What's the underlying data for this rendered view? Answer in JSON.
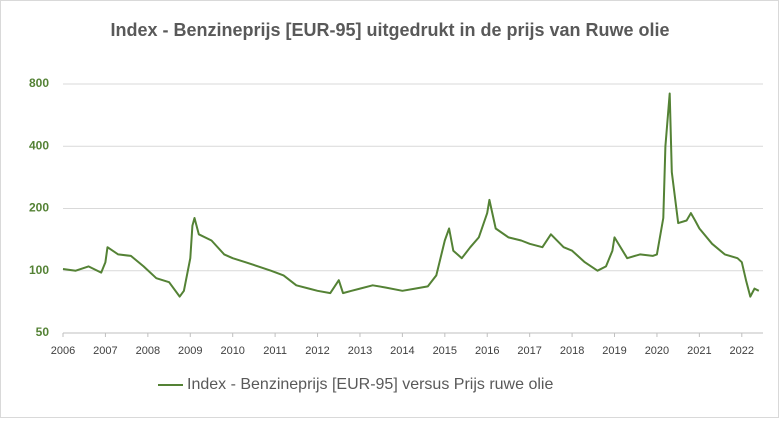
{
  "chart_data": {
    "type": "line",
    "title": "Index - Benzineprijs [EUR-95] uitgedrukt in de prijs van Ruwe olie",
    "x": [
      2006.0,
      2006.3,
      2006.6,
      2006.9,
      2007.0,
      2007.05,
      2007.3,
      2007.6,
      2007.9,
      2008.2,
      2008.5,
      2008.75,
      2008.85,
      2009.0,
      2009.05,
      2009.1,
      2009.2,
      2009.5,
      2009.8,
      2010.0,
      2010.3,
      2010.6,
      2010.9,
      2011.2,
      2011.5,
      2011.8,
      2012.0,
      2012.3,
      2012.5,
      2012.6,
      2012.8,
      2013.0,
      2013.3,
      2013.6,
      2014.0,
      2014.3,
      2014.6,
      2014.8,
      2015.0,
      2015.1,
      2015.2,
      2015.4,
      2015.6,
      2015.8,
      2016.0,
      2016.05,
      2016.2,
      2016.5,
      2016.8,
      2017.0,
      2017.3,
      2017.5,
      2017.8,
      2018.0,
      2018.3,
      2018.6,
      2018.8,
      2018.95,
      2019.0,
      2019.3,
      2019.6,
      2019.9,
      2020.0,
      2020.15,
      2020.2,
      2020.3,
      2020.35,
      2020.5,
      2020.7,
      2020.8,
      2020.9,
      2021.0,
      2021.3,
      2021.6,
      2021.9,
      2022.0,
      2022.1,
      2022.2,
      2022.3,
      2022.4
    ],
    "series": [
      {
        "name": "Index - Benzineprijs [EUR-95] versus Prijs ruwe olie",
        "color": "#548235",
        "values": [
          102,
          100,
          105,
          98,
          110,
          130,
          120,
          118,
          105,
          92,
          88,
          75,
          80,
          115,
          165,
          180,
          150,
          140,
          120,
          115,
          110,
          105,
          100,
          95,
          85,
          82,
          80,
          78,
          90,
          78,
          80,
          82,
          85,
          83,
          80,
          82,
          84,
          95,
          140,
          160,
          125,
          115,
          130,
          145,
          190,
          220,
          160,
          145,
          140,
          135,
          130,
          150,
          130,
          125,
          110,
          100,
          105,
          125,
          145,
          115,
          120,
          118,
          120,
          180,
          400,
          720,
          300,
          170,
          175,
          190,
          175,
          160,
          135,
          120,
          115,
          110,
          90,
          75,
          82,
          80
        ]
      }
    ],
    "xlim": [
      2006,
      2022.5
    ],
    "xticks": [
      2006,
      2007,
      2008,
      2009,
      2010,
      2011,
      2012,
      2013,
      2014,
      2015,
      2016,
      2017,
      2018,
      2019,
      2020,
      2021,
      2022
    ],
    "ylim": [
      50,
      800
    ],
    "yticks": [
      50,
      100,
      200,
      400,
      800
    ],
    "y_scale": "log",
    "grid": true,
    "legend": "bottom"
  }
}
